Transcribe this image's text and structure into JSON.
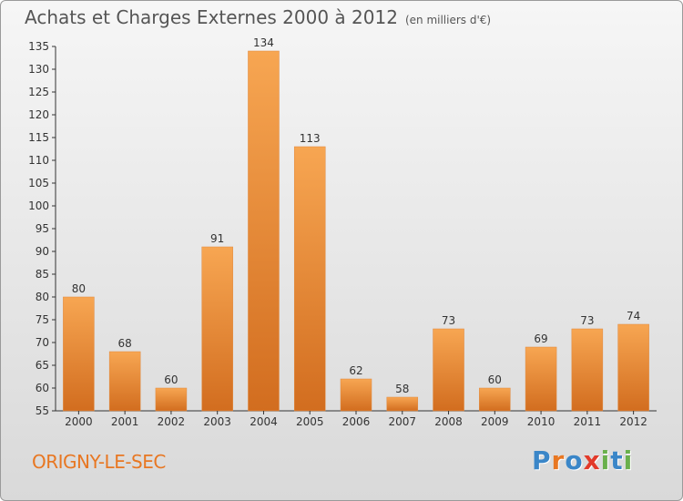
{
  "title": "Achats et Charges Externes 2000 à 2012",
  "unit": "(en milliers d'€)",
  "location": "ORIGNY-LE-SEC",
  "brand": "Proxiti",
  "chart_data": {
    "type": "bar",
    "categories": [
      "2000",
      "2001",
      "2002",
      "2003",
      "2004",
      "2005",
      "2006",
      "2007",
      "2008",
      "2009",
      "2010",
      "2011",
      "2012"
    ],
    "values": [
      80,
      68,
      60,
      91,
      134,
      113,
      62,
      58,
      73,
      60,
      69,
      73,
      74
    ],
    "ylim": [
      55,
      135
    ],
    "yticks": [
      55,
      60,
      65,
      70,
      75,
      80,
      85,
      90,
      95,
      100,
      105,
      110,
      115,
      120,
      125,
      130,
      135
    ],
    "grid": false,
    "bar_color": "#f0a050",
    "bar_color_dark": "#d9752a"
  }
}
